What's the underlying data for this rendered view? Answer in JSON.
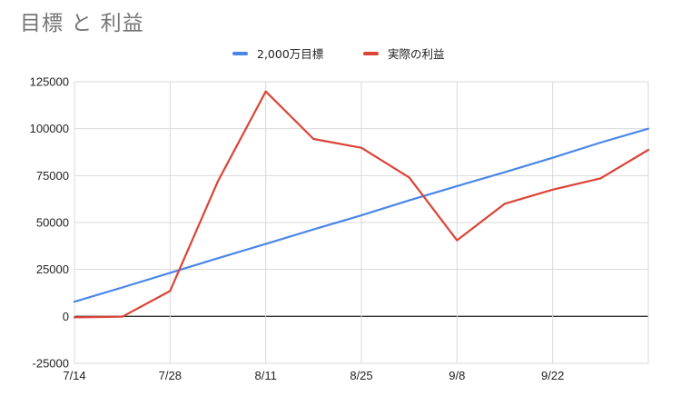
{
  "chart_data": {
    "type": "line",
    "title": "目標 と 利益",
    "legend_position": "top",
    "grid": true,
    "ylim": [
      -25000,
      125000
    ],
    "yticks": [
      -25000,
      0,
      25000,
      50000,
      75000,
      100000,
      125000
    ],
    "ytick_labels": [
      "-25000",
      "0",
      "25000",
      "50000",
      "75000",
      "100000",
      "125000"
    ],
    "xtick_labels": [
      "7/14",
      "7/28",
      "8/11",
      "8/25",
      "9/8",
      "9/22"
    ],
    "x": [
      0,
      5,
      10,
      15,
      20,
      25,
      30,
      35,
      40,
      45,
      50,
      55,
      60
    ],
    "series": [
      {
        "name": "2,000万目標",
        "color": "#4a86e8",
        "values": [
          7800,
          15400,
          23200,
          31000,
          38600,
          46300,
          53800,
          61800,
          69400,
          76800,
          84500,
          92600,
          100000
        ]
      },
      {
        "name": "実際の利益",
        "color": "#db4437",
        "values": [
          -500,
          -200,
          13500,
          72000,
          119800,
          94500,
          89800,
          74000,
          40500,
          60000,
          67500,
          73500,
          88700
        ]
      }
    ]
  }
}
